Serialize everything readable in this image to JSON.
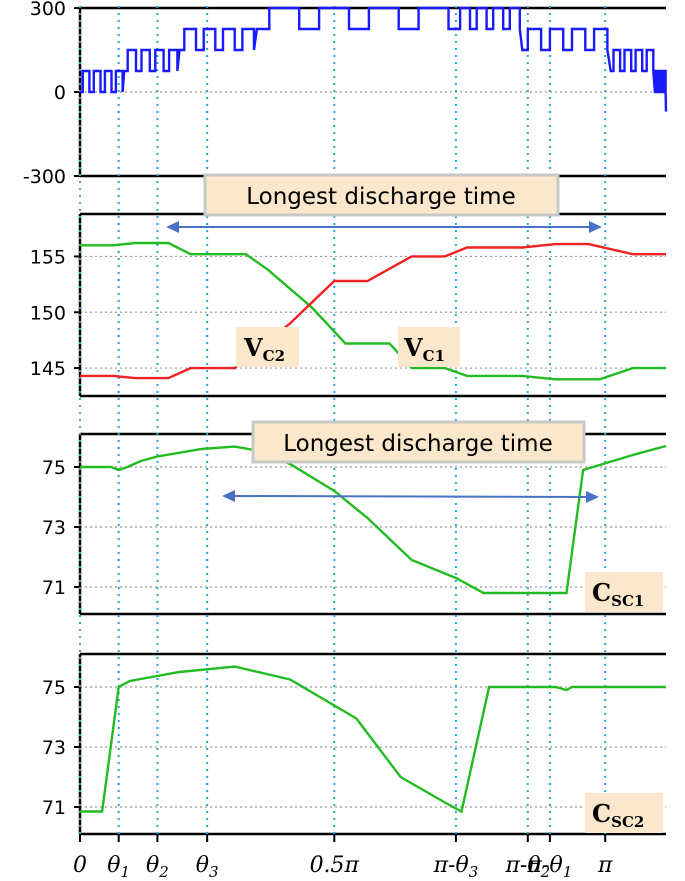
{
  "chart_data": [
    {
      "type": "line",
      "panel": "output-voltage",
      "ylim": [
        -300,
        300
      ],
      "yticks": [
        "300",
        "0",
        "-300"
      ],
      "yticks_values": [
        300,
        0,
        -300
      ],
      "grid": "dotted",
      "color": "#1a1aff",
      "series": [
        {
          "levels": [
            {
              "x": [
                0.0,
                0.04
              ],
              "low": 0,
              "high": 75
            },
            {
              "x": [
                0.04,
                0.09
              ],
              "low": 75,
              "high": 150
            },
            {
              "x": [
                0.09,
                0.16
              ],
              "low": 150,
              "high": 225
            },
            {
              "x": [
                0.16,
                0.34
              ],
              "low": 225,
              "high": 300
            },
            {
              "x": [
                0.34,
                0.4
              ],
              "low": 225,
              "high": 300
            },
            {
              "x": [
                0.4,
                0.48
              ],
              "low": 150,
              "high": 225
            },
            {
              "x": [
                0.48,
                0.52
              ],
              "low": 75,
              "high": 150
            },
            {
              "x": [
                0.52,
                0.53
              ],
              "low": 0,
              "high": 75
            }
          ]
        }
      ]
    },
    {
      "type": "line",
      "panel": "capacitor-voltages",
      "ylim": [
        142.5,
        158.8
      ],
      "yticks": [
        "155",
        "150",
        "145"
      ],
      "yticks_values": [
        155,
        150,
        145
      ],
      "grid": "dotted",
      "series": [
        {
          "name": "V_C1",
          "color": "#22bb22",
          "points": [
            [
              0.0,
              156.0
            ],
            [
              0.03,
              156.0
            ],
            [
              0.05,
              156.2
            ],
            [
              0.08,
              156.2
            ],
            [
              0.1,
              155.2
            ],
            [
              0.15,
              155.2
            ],
            [
              0.17,
              153.8
            ],
            [
              0.21,
              150.4
            ],
            [
              0.24,
              147.2
            ],
            [
              0.28,
              147.2
            ],
            [
              0.3,
              145.0
            ],
            [
              0.33,
              145.0
            ],
            [
              0.35,
              144.3
            ],
            [
              0.4,
              144.3
            ],
            [
              0.43,
              144.0
            ],
            [
              0.47,
              144.0
            ],
            [
              0.5,
              145.0
            ],
            [
              0.53,
              145.0
            ]
          ]
        },
        {
          "name": "V_C2",
          "color": "#ee2222",
          "points": [
            [
              0.0,
              144.3
            ],
            [
              0.03,
              144.3
            ],
            [
              0.05,
              144.1
            ],
            [
              0.08,
              144.1
            ],
            [
              0.1,
              145.0
            ],
            [
              0.14,
              145.0
            ],
            [
              0.19,
              149.0
            ],
            [
              0.23,
              152.8
            ],
            [
              0.26,
              152.8
            ],
            [
              0.3,
              155.0
            ],
            [
              0.33,
              155.0
            ],
            [
              0.35,
              155.8
            ],
            [
              0.4,
              155.8
            ],
            [
              0.43,
              156.1
            ],
            [
              0.46,
              156.1
            ],
            [
              0.5,
              155.2
            ],
            [
              0.53,
              155.2
            ]
          ]
        }
      ]
    },
    {
      "type": "line",
      "panel": "capacitance-csc1",
      "ylim": [
        70.1,
        76.1
      ],
      "yticks": [
        "75",
        "73",
        "71"
      ],
      "yticks_values": [
        75,
        73,
        71
      ],
      "grid": "dotted",
      "series": [
        {
          "name": "C_SC1",
          "color": "#22bb22",
          "points": [
            [
              0.0,
              75.0
            ],
            [
              0.028,
              75.0
            ],
            [
              0.035,
              74.9
            ],
            [
              0.043,
              75.0
            ],
            [
              0.055,
              75.2
            ],
            [
              0.07,
              75.35
            ],
            [
              0.11,
              75.6
            ],
            [
              0.14,
              75.68
            ],
            [
              0.16,
              75.55
            ],
            [
              0.19,
              75.1
            ],
            [
              0.23,
              74.2
            ],
            [
              0.26,
              73.3
            ],
            [
              0.3,
              71.9
            ],
            [
              0.34,
              71.3
            ],
            [
              0.365,
              70.8
            ],
            [
              0.42,
              70.8
            ],
            [
              0.435,
              70.8
            ],
            [
              0.44,
              70.8
            ],
            [
              0.455,
              74.9
            ],
            [
              0.5,
              75.4
            ],
            [
              0.53,
              75.7
            ]
          ]
        }
      ]
    },
    {
      "type": "line",
      "panel": "capacitance-csc2",
      "ylim": [
        70.1,
        76.1
      ],
      "yticks": [
        "75",
        "73",
        "71"
      ],
      "yticks_values": [
        75,
        73,
        71
      ],
      "grid": "dotted",
      "series": [
        {
          "name": "C_SC2",
          "color": "#22bb22",
          "points": [
            [
              0.0,
              70.85
            ],
            [
              0.02,
              70.85
            ],
            [
              0.035,
              75.0
            ],
            [
              0.045,
              75.2
            ],
            [
              0.09,
              75.5
            ],
            [
              0.14,
              75.68
            ],
            [
              0.19,
              75.25
            ],
            [
              0.25,
              73.95
            ],
            [
              0.29,
              72.0
            ],
            [
              0.33,
              71.15
            ],
            [
              0.345,
              70.85
            ],
            [
              0.37,
              75.0
            ],
            [
              0.41,
              75.0
            ],
            [
              0.43,
              75.0
            ],
            [
              0.44,
              74.9
            ],
            [
              0.445,
              75.0
            ],
            [
              0.53,
              75.0
            ]
          ]
        }
      ]
    }
  ],
  "xaxis": {
    "ticks": [
      {
        "base": "0",
        "sub": "",
        "x": 0.0
      },
      {
        "base": "θ",
        "sub": "1",
        "x": 0.035
      },
      {
        "base": "θ",
        "sub": "2",
        "x": 0.07
      },
      {
        "base": "θ",
        "sub": "3",
        "x": 0.115
      },
      {
        "base": "0.5π",
        "sub": "",
        "x": 0.23
      },
      {
        "base": "π-θ",
        "sub": "3",
        "x": 0.34
      },
      {
        "base": "π-θ",
        "sub": "2",
        "x": 0.405
      },
      {
        "base": "π-θ",
        "sub": "1",
        "x": 0.425
      },
      {
        "base": "π",
        "sub": "",
        "x": 0.475
      }
    ]
  },
  "annotations": {
    "callout_top": "Longest discharge time",
    "callout_mid": "Longest discharge time",
    "label_vc2_base": "V",
    "label_vc2_sub": "C2",
    "label_vc1_base": "V",
    "label_vc1_sub": "C1",
    "label_csc1_base": "C",
    "label_csc1_sub": "SC1",
    "label_csc2_base": "C",
    "label_csc2_sub": "SC2"
  },
  "colors": {
    "blue": "#1a1aff",
    "green": "#22bb22",
    "red": "#ee2222",
    "arrow": "#4a72c4",
    "callout_fill": "#fbe8cc",
    "callout_stroke": "#c8c8c8",
    "grid_h": "#999999",
    "grid_v": "#20a8d8"
  }
}
